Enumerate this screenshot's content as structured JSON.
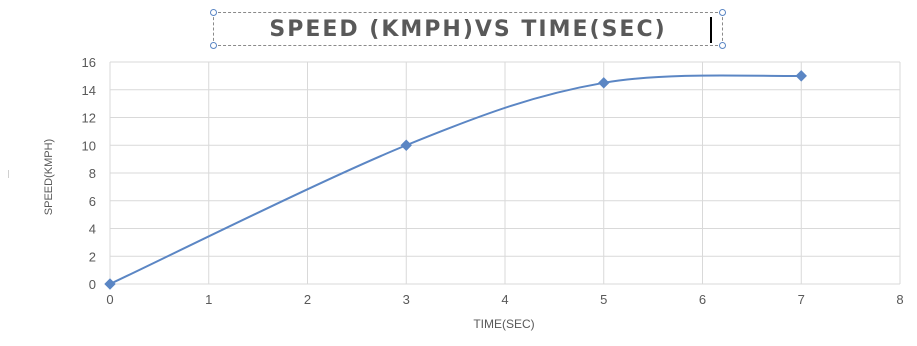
{
  "chart_data": {
    "type": "line",
    "title": "SPEED (KMPH)VS TIME(SEC)",
    "xlabel": "TIME(SEC)",
    "ylabel": "SPEED(KMPH)",
    "xlim": [
      0,
      8
    ],
    "ylim": [
      0,
      16
    ],
    "x_ticks": [
      0,
      1,
      2,
      3,
      4,
      5,
      6,
      7,
      8
    ],
    "y_ticks": [
      0,
      2,
      4,
      6,
      8,
      10,
      12,
      14,
      16
    ],
    "grid": true,
    "legend": "none",
    "smooth": true,
    "series": [
      {
        "color": "#5b86c4",
        "marker": "diamond",
        "x": [
          0,
          3,
          5,
          7
        ],
        "y": [
          0,
          10,
          14.5,
          15
        ]
      }
    ]
  }
}
